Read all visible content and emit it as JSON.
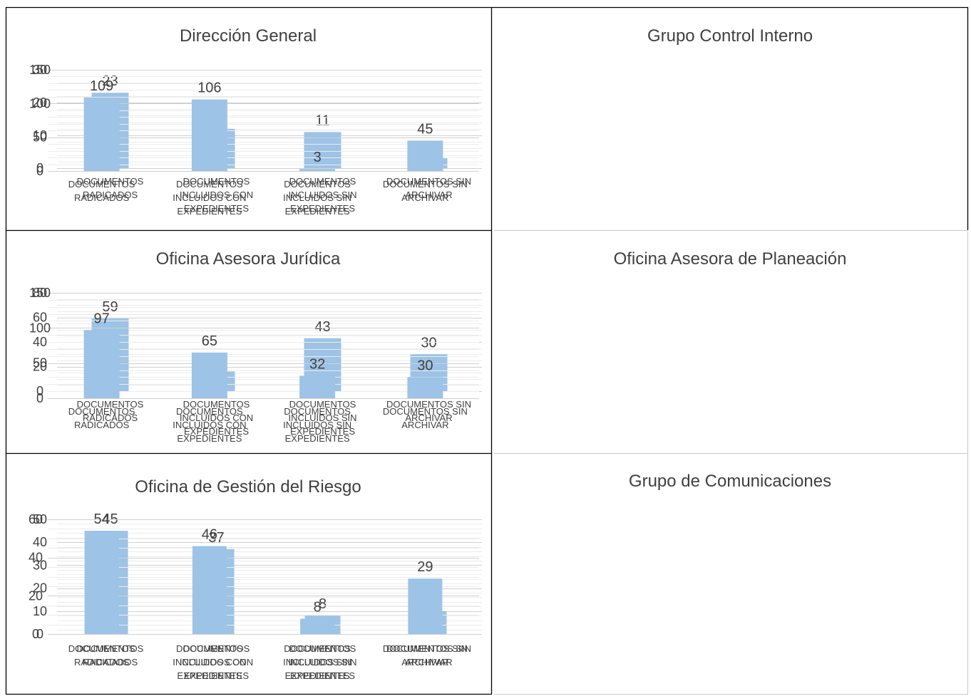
{
  "chart_data": [
    {
      "type": "bar",
      "title": "Dirección General",
      "categories": [
        [
          "DOCUMENTOS",
          "RADICADOS"
        ],
        [
          "DOCUMENTOS",
          "INCLUIDOS CON",
          "EXPEDIENTES"
        ],
        [
          "DOCUMENTOS",
          "INCLUIDOS SIN",
          "EXPEDIENTES"
        ],
        [
          "DOCUMENTOS SIN",
          "ARCHIVAR"
        ]
      ],
      "values": [
        23,
        12,
        11,
        3
      ],
      "yticks": [
        0,
        10,
        20,
        30
      ],
      "ylim": [
        0,
        30
      ],
      "minor_step": 2,
      "grid": true,
      "colors": {
        "bar": "#9dc3e6"
      }
    },
    {
      "type": "bar",
      "title": "Grupo Control Interno",
      "categories": [
        [
          "DOCUMENTOS",
          "RADICADOS"
        ],
        [
          "DOCUMENTOS",
          "INCLUIDOS CON",
          "EXPEDIENTES"
        ],
        [
          "DOCUMENTOS",
          "INCLUIDOS SIN",
          "EXPEDIENTES"
        ],
        [
          "DOCUMENTOS SIN",
          "ARCHIVAR"
        ]
      ],
      "values": [
        109,
        106,
        3,
        45
      ],
      "yticks": [
        0,
        50,
        100,
        150
      ],
      "ylim": [
        0,
        150
      ],
      "minor_step": 10,
      "grid": true,
      "colors": {
        "bar": "#9dc3e6"
      }
    },
    {
      "type": "bar",
      "title": "Oficina Asesora Jurídica",
      "categories": [
        [
          "DOCUMENTOS",
          "RADICADOS"
        ],
        [
          "DOCUMENTOS",
          "INCLUIDOS CON",
          "EXPEDIENTES"
        ],
        [
          "DOCUMENTOS",
          "INCLUIDOS SIN",
          "EXPEDIENTES"
        ],
        [
          "DOCUMENTOS SIN",
          "ARCHIVAR"
        ]
      ],
      "values": [
        59,
        16,
        43,
        30
      ],
      "yticks": [
        0,
        20,
        40,
        60,
        80
      ],
      "ylim": [
        0,
        80
      ],
      "minor_step": 5,
      "grid": true,
      "colors": {
        "bar": "#9dc3e6"
      }
    },
    {
      "type": "bar",
      "title": "Oficina Asesora de Planeación",
      "categories": [
        [
          "DOCUMENTOS",
          "RADICADOS"
        ],
        [
          "DOCUMENTOS",
          "INCLUIDOS CON",
          "EXPEDIENTES"
        ],
        [
          "DOCUMENTOS",
          "INCLUIDOS SIN",
          "EXPEDIENTES"
        ],
        [
          "DOCUMENTOS SIN",
          "ARCHIVAR"
        ]
      ],
      "values": [
        97,
        65,
        32,
        30
      ],
      "yticks": [
        0,
        50,
        100,
        150
      ],
      "ylim": [
        0,
        150
      ],
      "minor_step": 10,
      "grid": true,
      "colors": {
        "bar": "#9dc3e6"
      }
    },
    {
      "type": "bar",
      "title": "Oficina de Gestión del Riesgo",
      "categories": [
        [
          "DOCUMENTOS",
          "RADICADOS"
        ],
        [
          "DOCUMENTOS",
          "INCLUIDOS CON",
          "EXPEDIENTES"
        ],
        [
          "DOCUMENTOS",
          "INCLUIDOS SIN",
          "EXPEDIENTES"
        ],
        [
          "DOCUMENTOS SIN",
          "ARCHIVAR"
        ]
      ],
      "values": [
        45,
        37,
        8,
        10
      ],
      "yticks": [
        0,
        10,
        20,
        30,
        40,
        50
      ],
      "ylim": [
        0,
        50
      ],
      "minor_step": 2,
      "grid": true,
      "colors": {
        "bar": "#9dc3e6"
      }
    },
    {
      "type": "bar",
      "title": "Grupo de Comunicaciones",
      "categories": [
        [
          "DOCUMENTOS",
          "RADICADOS"
        ],
        [
          "DOCUMENTOS",
          "INCLUIDOS CON",
          "EXPEDIENTES"
        ],
        [
          "DOCUMENTOS",
          "INCLUIDOS SIN",
          "EXPEDIENTES"
        ],
        [
          "DOCUMENTOS SIN",
          "ARCHIVAR"
        ]
      ],
      "values": [
        54,
        46,
        8,
        29
      ],
      "yticks": [
        0,
        20,
        40,
        60
      ],
      "ylim": [
        0,
        60
      ],
      "minor_step": 5,
      "grid": true,
      "colors": {
        "bar": "#9dc3e6"
      }
    }
  ]
}
